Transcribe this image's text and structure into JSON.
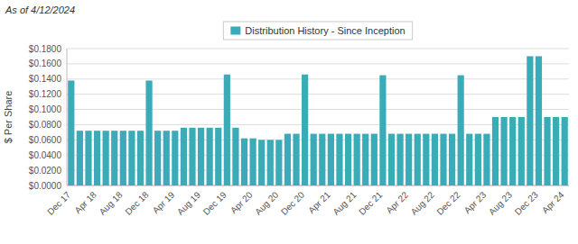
{
  "chart_data": {
    "type": "bar",
    "title": "As of 4/12/2024",
    "ylabel": "$ Per Share",
    "categories": [
      "Dec 17",
      null,
      null,
      "Apr 18",
      null,
      null,
      "Aug 18",
      null,
      null,
      "Dec 18",
      null,
      null,
      "Apr 19",
      null,
      null,
      "Aug 19",
      null,
      null,
      "Dec 19",
      null,
      null,
      "Apr 20",
      null,
      null,
      "Aug 20",
      null,
      null,
      "Dec 20",
      null,
      null,
      "Apr 21",
      null,
      null,
      "Aug 21",
      null,
      null,
      "Dec 21",
      null,
      null,
      "Apr 22",
      null,
      null,
      "Aug 22",
      null,
      null,
      "Dec 22",
      null,
      null,
      "Apr 23",
      null,
      null,
      "Aug 23",
      null,
      null,
      "Dec 23",
      null,
      null,
      "Apr 24"
    ],
    "series": [
      {
        "name": "Distribution History - Since Inception",
        "color": "#3aacb8",
        "values": [
          0.138,
          0.072,
          0.072,
          0.072,
          0.072,
          0.072,
          0.072,
          0.072,
          0.072,
          0.138,
          0.072,
          0.072,
          0.072,
          0.076,
          0.076,
          0.076,
          0.076,
          0.076,
          0.146,
          0.076,
          0.062,
          0.062,
          0.06,
          0.06,
          0.06,
          0.068,
          0.068,
          0.146,
          0.068,
          0.068,
          0.068,
          0.068,
          0.068,
          0.068,
          0.068,
          0.068,
          0.145,
          0.068,
          0.068,
          0.068,
          0.068,
          0.068,
          0.068,
          0.068,
          0.068,
          0.145,
          0.068,
          0.068,
          0.068,
          0.09,
          0.09,
          0.09,
          0.09,
          0.17,
          0.17,
          0.09,
          0.09,
          0.09
        ]
      }
    ],
    "ylim": [
      0,
      0.18
    ],
    "yticks": [
      {
        "value": 0.0,
        "label": "$0.0000"
      },
      {
        "value": 0.02,
        "label": "$0.0200"
      },
      {
        "value": 0.04,
        "label": "$0.0400"
      },
      {
        "value": 0.06,
        "label": "$0.0600"
      },
      {
        "value": 0.08,
        "label": "$0.0800"
      },
      {
        "value": 0.1,
        "label": "$0.1000"
      },
      {
        "value": 0.12,
        "label": "$0.1200"
      },
      {
        "value": 0.14,
        "label": "$0.1400"
      },
      {
        "value": 0.16,
        "label": "$0.1600"
      },
      {
        "value": 0.18,
        "label": "$0.1800"
      }
    ],
    "grid": true,
    "legend": "top"
  }
}
